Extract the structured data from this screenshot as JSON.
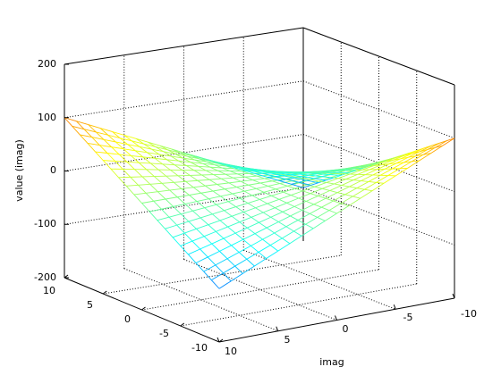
{
  "chart_data": {
    "type": "surface-mesh",
    "function": "z = x * y",
    "x": [
      -10,
      -9,
      -8,
      -7,
      -6,
      -5,
      -4,
      -3,
      -2,
      -1,
      0,
      1,
      2,
      3,
      4,
      5,
      6,
      7,
      8,
      9,
      10
    ],
    "y": [
      -10,
      -9,
      -8,
      -7,
      -6,
      -5,
      -4,
      -3,
      -2,
      -1,
      0,
      1,
      2,
      3,
      4,
      5,
      6,
      7,
      8,
      9,
      10
    ],
    "zlim": [
      -200,
      200
    ],
    "xlim": [
      -10,
      10
    ],
    "ylim": [
      -10,
      10
    ],
    "xticks": [
      "10",
      "5",
      "0",
      "-5",
      "-10"
    ],
    "yticks": [
      "10",
      "5",
      "0",
      "-5",
      "-10"
    ],
    "zticks": [
      "200",
      "100",
      "0",
      "-100",
      "-200"
    ],
    "xlabel": "imag",
    "ylabel": "",
    "zlabel": "value (imag)",
    "colormap": "jet",
    "grid": true
  }
}
